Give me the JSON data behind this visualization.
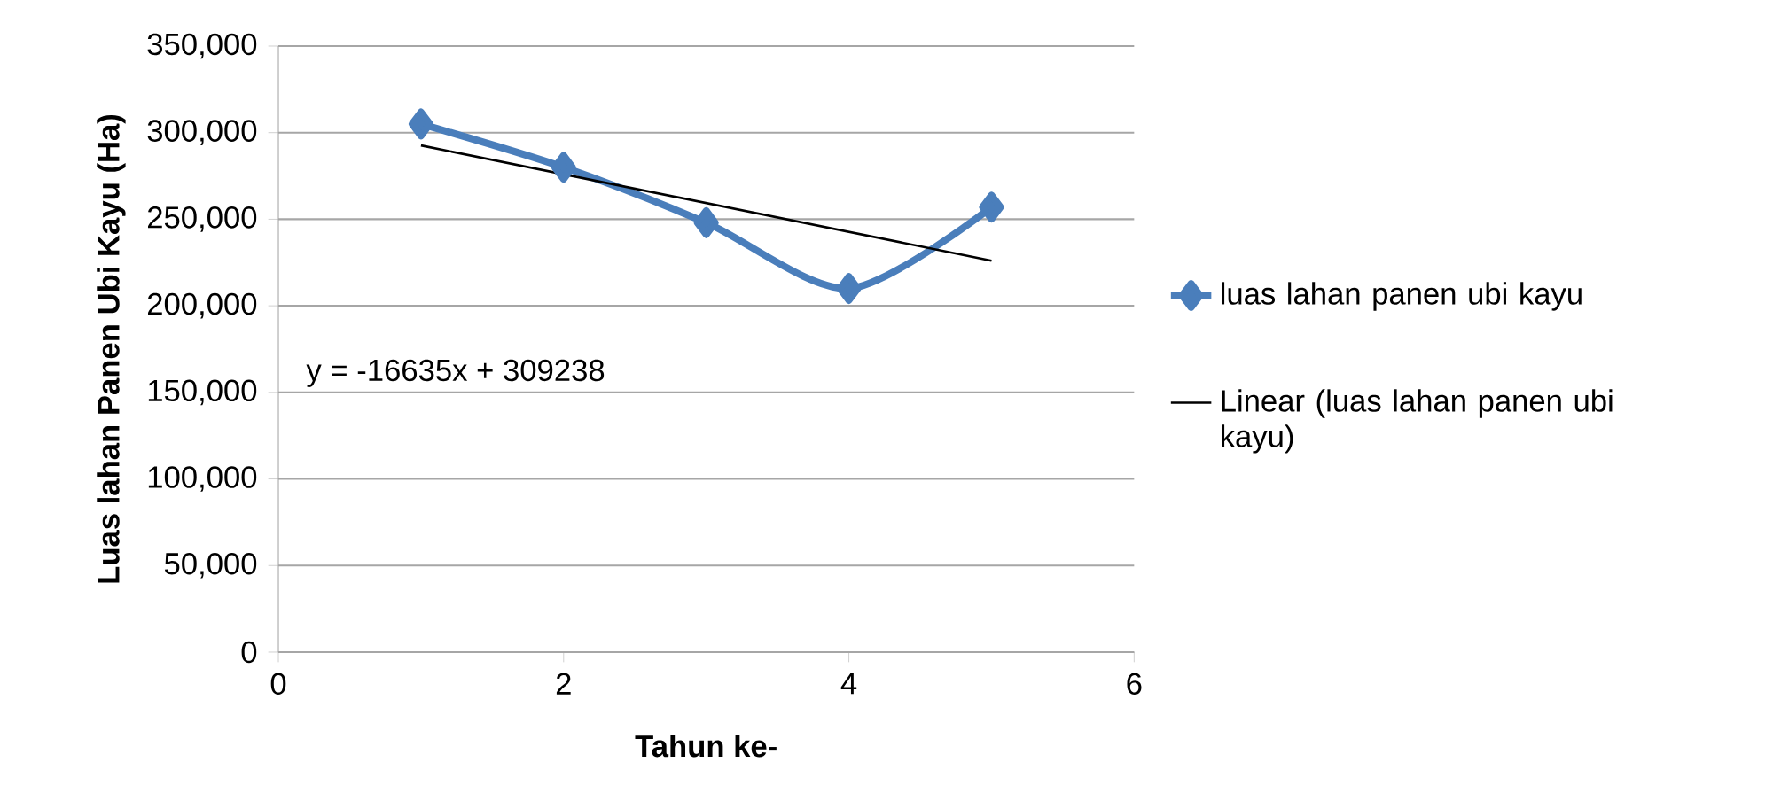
{
  "chart_data": {
    "type": "line",
    "xlabel": "Tahun ke-",
    "ylabel": "Luas lahan Panen Ubi Kayu (Ha)",
    "series": [
      {
        "name": "luas lahan panen ubi kayu",
        "color": "#4a7ebb",
        "x": [
          1,
          2,
          3,
          4,
          5
        ],
        "values": [
          305000,
          280000,
          248000,
          210000,
          257000
        ],
        "marker": "diamond"
      },
      {
        "name": "Linear (luas lahan panen ubi kayu)",
        "color": "#000000",
        "x": [
          1,
          5
        ],
        "values": [
          292603,
          226063
        ],
        "marker": "none"
      }
    ],
    "xlim": [
      0,
      6
    ],
    "xticks": [
      0,
      2,
      4,
      6
    ],
    "ylim": [
      0,
      350000
    ],
    "yticks": [
      {
        "value": 0,
        "label": "0"
      },
      {
        "value": 50000,
        "label": "50,000"
      },
      {
        "value": 100000,
        "label": "100,000"
      },
      {
        "value": 150000,
        "label": "150,000"
      },
      {
        "value": 200000,
        "label": "200,000"
      },
      {
        "value": 250000,
        "label": "250,000"
      },
      {
        "value": 300000,
        "label": "300,000"
      },
      {
        "value": 350000,
        "label": "350,000"
      }
    ],
    "grid": "y",
    "legend": "right",
    "annotations": [
      "y = -16635x + 309238"
    ]
  }
}
